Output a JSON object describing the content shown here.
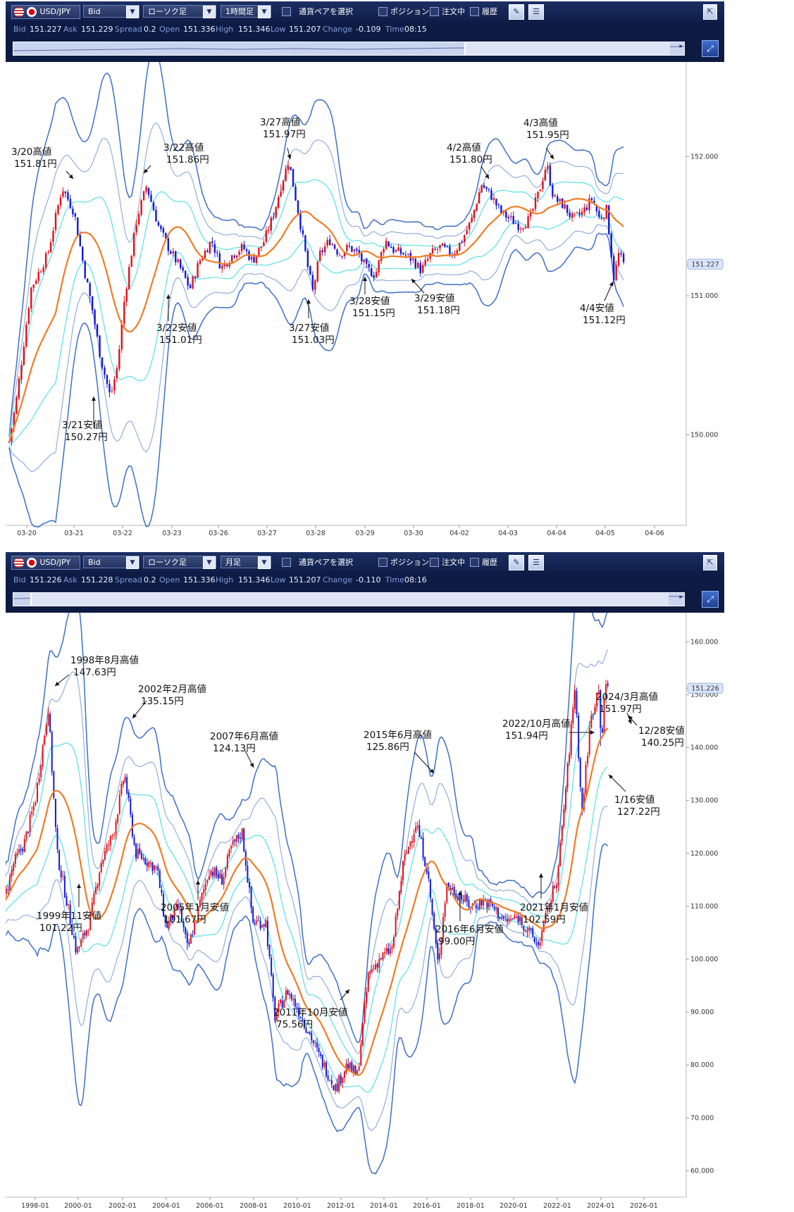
{
  "panels": [
    {
      "toolbar": {
        "pair": "USD/JPY",
        "price_type": "Bid",
        "chart_type": "ローソク足",
        "timeframe": "1時間足",
        "select_pair": "通貨ペアを選択",
        "position": "ポジション",
        "orders": "注文中",
        "history": "履歴"
      },
      "info": {
        "bid_label": "Bid",
        "bid": "151.227",
        "ask_label": "Ask",
        "ask": "151.229",
        "spread_label": "Spread",
        "spread": "0.2",
        "open_label": "Open",
        "open": "151.336",
        "high_label": "High",
        "high": "151.346",
        "low_label": "Low",
        "low": "151.207",
        "change_label": "Change",
        "change": "-0.109",
        "time_label": "Time",
        "time": "08:15"
      }
    },
    {
      "toolbar": {
        "pair": "USD/JPY",
        "price_type": "Bid",
        "chart_type": "ローソク足",
        "timeframe": "月足",
        "select_pair": "通貨ペアを選択",
        "position": "ポジション",
        "orders": "注文中",
        "history": "履歴"
      },
      "info": {
        "bid_label": "Bid",
        "bid": "151.226",
        "ask_label": "Ask",
        "ask": "151.228",
        "spread_label": "Spread",
        "spread": "0.2",
        "open_label": "Open",
        "open": "151.336",
        "high_label": "High",
        "high": "151.346",
        "low_label": "Low",
        "low": "151.207",
        "change_label": "Change",
        "change": "-0.110",
        "time_label": "Time",
        "time": "08:16"
      }
    }
  ],
  "colors": {
    "toolbar_bg": "#13275a",
    "candle_up": "#e0121c",
    "candle_down": "#1419d6",
    "sma": "#f07c25",
    "band_1sigma": "#59e0e6",
    "band_2sigma": "#93aede",
    "band_3sigma": "#3f6fc8"
  },
  "chart_data": [
    {
      "type": "candlestick",
      "timeframe": "1時間足",
      "x_ticks": [
        "03-20",
        "03-21",
        "03-22",
        "03-23",
        "03-26",
        "03-27",
        "03-28",
        "03-29",
        "03-30",
        "04-02",
        "04-03",
        "04-04",
        "04-05",
        "04-06"
      ],
      "y_ticks": [
        "150.000",
        "151.000",
        "152.000"
      ],
      "y_tick_values": [
        150.0,
        151.0,
        152.0
      ],
      "ylim": [
        149.35,
        152.68
      ],
      "current_price": "151.227",
      "current_value": 151.227,
      "overlays": [
        "moving average",
        "bollinger bands ±1σ",
        "bollinger bands ±2σ",
        "bollinger bands ±3σ"
      ],
      "price_path": [
        [
          0,
          149.95
        ],
        [
          3,
          150.25
        ],
        [
          9,
          151.05
        ],
        [
          16,
          151.3
        ],
        [
          22,
          151.78
        ],
        [
          27,
          151.6
        ],
        [
          31,
          151.2
        ],
        [
          34,
          150.95
        ],
        [
          38,
          150.55
        ],
        [
          42,
          150.27
        ],
        [
          45,
          150.5
        ],
        [
          48,
          151.0
        ],
        [
          53,
          151.55
        ],
        [
          57,
          151.79
        ],
        [
          62,
          151.5
        ],
        [
          66,
          151.35
        ],
        [
          71,
          151.2
        ],
        [
          75,
          151.05
        ],
        [
          79,
          151.25
        ],
        [
          84,
          151.4
        ],
        [
          88,
          151.2
        ],
        [
          93,
          151.3
        ],
        [
          97,
          151.35
        ],
        [
          101,
          151.25
        ],
        [
          106,
          151.4
        ],
        [
          110,
          151.6
        ],
        [
          113,
          151.8
        ],
        [
          116,
          151.97
        ],
        [
          120,
          151.6
        ],
        [
          124,
          151.2
        ],
        [
          126,
          151.03
        ],
        [
          129,
          151.3
        ],
        [
          133,
          151.4
        ],
        [
          137,
          151.3
        ],
        [
          141,
          151.35
        ],
        [
          145,
          151.3
        ],
        [
          148,
          151.2
        ],
        [
          152,
          151.15
        ],
        [
          156,
          151.4
        ],
        [
          160,
          151.32
        ],
        [
          164,
          151.3
        ],
        [
          168,
          151.25
        ],
        [
          171,
          151.18
        ],
        [
          175,
          151.3
        ],
        [
          179,
          151.35
        ],
        [
          184,
          151.3
        ],
        [
          188,
          151.4
        ],
        [
          192,
          151.55
        ],
        [
          196,
          151.8
        ],
        [
          200,
          151.72
        ],
        [
          204,
          151.6
        ],
        [
          208,
          151.55
        ],
        [
          212,
          151.5
        ],
        [
          216,
          151.55
        ],
        [
          220,
          151.75
        ],
        [
          223,
          151.95
        ],
        [
          226,
          151.7
        ],
        [
          230,
          151.65
        ],
        [
          234,
          151.55
        ],
        [
          238,
          151.6
        ],
        [
          242,
          151.7
        ],
        [
          245,
          151.55
        ],
        [
          248,
          151.62
        ],
        [
          251,
          151.12
        ],
        [
          253,
          151.3
        ],
        [
          255,
          151.227
        ]
      ],
      "annotations": [
        {
          "date": "3/20高値",
          "price": "151.81円"
        },
        {
          "date": "3/21安値",
          "price": "150.27円"
        },
        {
          "date": "3/22高値",
          "price": "151.86円"
        },
        {
          "date": "3/22安値",
          "price": "151.01円"
        },
        {
          "date": "3/27高値",
          "price": "151.97円"
        },
        {
          "date": "3/27安値",
          "price": "151.03円"
        },
        {
          "date": "3/28安値",
          "price": "151.15円"
        },
        {
          "date": "3/29安値",
          "price": "151.18円"
        },
        {
          "date": "4/2高値",
          "price": "151.80円"
        },
        {
          "date": "4/3高値",
          "price": "151.95円"
        },
        {
          "date": "4/4安値",
          "price": "151.12円"
        }
      ]
    },
    {
      "type": "candlestick",
      "timeframe": "月足",
      "x_ticks": [
        "1998-01",
        "2000-01",
        "2002-01",
        "2004-01",
        "2006-01",
        "2008-01",
        "2010-01",
        "2012-01",
        "2014-01",
        "2016-01",
        "2018-01",
        "2020-01",
        "2022-01",
        "2024-01",
        "2026-01"
      ],
      "y_ticks": [
        "60.000",
        "70.000",
        "80.000",
        "90.000",
        "100.000",
        "110.000",
        "120.000",
        "130.000",
        "140.000",
        "150.000",
        "160.000"
      ],
      "y_tick_values": [
        60,
        70,
        80,
        90,
        100,
        110,
        120,
        130,
        140,
        150,
        160
      ],
      "ylim": [
        55.0,
        165.5
      ],
      "current_price": "151.226",
      "current_value": 151.226,
      "overlays": [
        "moving average",
        "bollinger bands ±1σ",
        "bollinger bands ±2σ",
        "bollinger bands ±3σ"
      ],
      "price_path": [
        [
          1996.5,
          110
        ],
        [
          1997.0,
          118
        ],
        [
          1997.5,
          122
        ],
        [
          1998.0,
          130
        ],
        [
          1998.6,
          147.6
        ],
        [
          1999.0,
          120
        ],
        [
          1999.4,
          112
        ],
        [
          1999.9,
          101.2
        ],
        [
          2000.5,
          107
        ],
        [
          2001.0,
          118
        ],
        [
          2001.6,
          124
        ],
        [
          2002.1,
          135.1
        ],
        [
          2002.6,
          120
        ],
        [
          2003.0,
          119
        ],
        [
          2003.6,
          117
        ],
        [
          2004.0,
          106
        ],
        [
          2004.6,
          110
        ],
        [
          2005.0,
          101.7
        ],
        [
          2005.6,
          111
        ],
        [
          2006.0,
          117
        ],
        [
          2006.6,
          115
        ],
        [
          2007.0,
          121
        ],
        [
          2007.5,
          124.1
        ],
        [
          2008.0,
          107
        ],
        [
          2008.6,
          107
        ],
        [
          2009.0,
          89
        ],
        [
          2009.6,
          94
        ],
        [
          2010.0,
          91
        ],
        [
          2010.6,
          86
        ],
        [
          2011.0,
          82
        ],
        [
          2011.8,
          75.6
        ],
        [
          2012.3,
          80
        ],
        [
          2012.8,
          78
        ],
        [
          2013.3,
          97
        ],
        [
          2013.8,
          100
        ],
        [
          2014.4,
          102
        ],
        [
          2014.9,
          118
        ],
        [
          2015.5,
          125.9
        ],
        [
          2016.0,
          117
        ],
        [
          2016.5,
          99.0
        ],
        [
          2016.9,
          114
        ],
        [
          2017.5,
          112
        ],
        [
          2018.0,
          110
        ],
        [
          2018.6,
          111
        ],
        [
          2019.0,
          110
        ],
        [
          2019.6,
          107
        ],
        [
          2020.2,
          108
        ],
        [
          2020.7,
          105
        ],
        [
          2021.1,
          102.6
        ],
        [
          2021.6,
          110
        ],
        [
          2022.0,
          116
        ],
        [
          2022.5,
          138
        ],
        [
          2022.8,
          151.9
        ],
        [
          2023.1,
          127.2
        ],
        [
          2023.5,
          145
        ],
        [
          2023.9,
          151.9
        ],
        [
          2024.0,
          140.3
        ],
        [
          2024.2,
          151.97
        ],
        [
          2024.3,
          151.226
        ]
      ],
      "annotations": [
        {
          "date": "1998年8月高値",
          "price": "147.63円"
        },
        {
          "date": "1999年11安値",
          "price": "101.22円"
        },
        {
          "date": "2002年2月高値",
          "price": "135.15円"
        },
        {
          "date": "2005年1月安値",
          "price": "101.67円"
        },
        {
          "date": "2007年6月高値",
          "price": "124.13円"
        },
        {
          "date": "2011年10月安値",
          "price": "75.56円"
        },
        {
          "date": "2015年6月高値",
          "price": "125.86円"
        },
        {
          "date": "2016年6月安値",
          "price": "99.00円"
        },
        {
          "date": "2021年1月安値",
          "price": "102.59円"
        },
        {
          "date": "2022/10月高値",
          "price": "151.94円"
        },
        {
          "date": "2024/3月高値",
          "price": "151.97円"
        },
        {
          "date": "12/28安値",
          "price": "140.25円"
        },
        {
          "date": "1/16安値",
          "price": "127.22円"
        }
      ]
    }
  ]
}
